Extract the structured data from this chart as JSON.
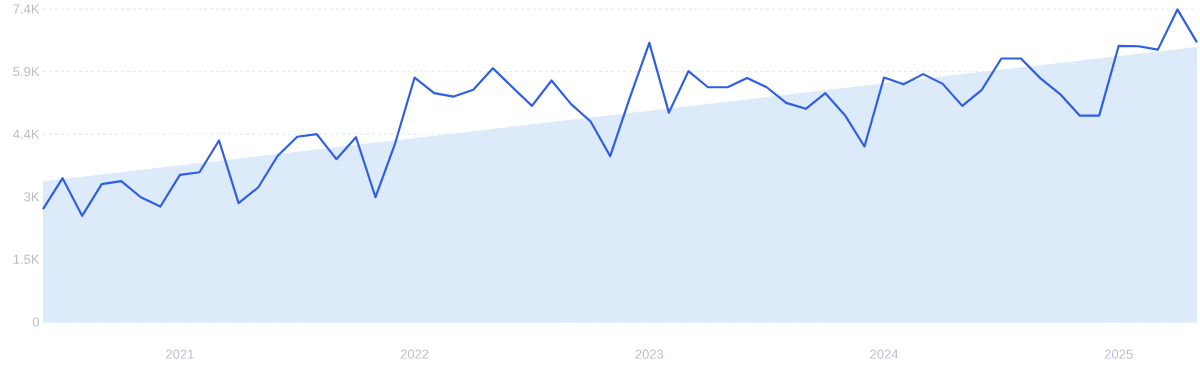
{
  "chart_data": {
    "type": "line",
    "x": [
      "2020-06",
      "2020-07",
      "2020-08",
      "2020-09",
      "2020-10",
      "2020-11",
      "2020-12",
      "2021-01",
      "2021-02",
      "2021-03",
      "2021-04",
      "2021-05",
      "2021-06",
      "2021-07",
      "2021-08",
      "2021-09",
      "2021-10",
      "2021-11",
      "2021-12",
      "2022-01",
      "2022-02",
      "2022-03",
      "2022-04",
      "2022-05",
      "2022-06",
      "2022-07",
      "2022-08",
      "2022-09",
      "2022-10",
      "2022-11",
      "2022-12",
      "2023-01",
      "2023-02",
      "2023-03",
      "2023-04",
      "2023-05",
      "2023-06",
      "2023-07",
      "2023-08",
      "2023-09",
      "2023-10",
      "2023-11",
      "2023-12",
      "2024-01",
      "2024-02",
      "2024-03",
      "2024-04",
      "2024-05",
      "2024-06",
      "2024-07",
      "2024-08",
      "2024-09",
      "2024-10",
      "2024-11",
      "2024-12",
      "2025-01",
      "2025-02",
      "2025-03",
      "2025-04",
      "2025-05"
    ],
    "series": [
      {
        "type": "area",
        "x": [
          "2020-06",
          "2025-05"
        ],
        "values": [
          3330,
          6500
        ],
        "color": "#dceafa"
      },
      {
        "color": "#2f5fe3",
        "values": [
          2670,
          3400,
          2510,
          3260,
          3330,
          2950,
          2730,
          3480,
          3540,
          4290,
          2810,
          3180,
          3930,
          4380,
          4440,
          3850,
          4370,
          2950,
          4220,
          5780,
          5410,
          5330,
          5490,
          6000,
          5550,
          5110,
          5710,
          5150,
          4740,
          3920,
          5300,
          6600,
          4950,
          5930,
          5550,
          5550,
          5770,
          5550,
          5180,
          5040,
          5410,
          4890,
          4150,
          5780,
          5620,
          5860,
          5630,
          5110,
          5490,
          6230,
          6230,
          5760,
          5390,
          4880,
          4880,
          6530,
          6520,
          6440,
          7390,
          6610
        ]
      }
    ],
    "xlim": [
      "2020-06",
      "2025-05"
    ],
    "xticks": [
      {
        "value": "2021-01",
        "label": "2021"
      },
      {
        "value": "2022-01",
        "label": "2022"
      },
      {
        "value": "2023-01",
        "label": "2023"
      },
      {
        "value": "2024-01",
        "label": "2024"
      },
      {
        "value": "2025-01",
        "label": "2025"
      }
    ],
    "ylim": [
      0,
      7400
    ],
    "yticks": [
      0,
      {
        "value": 1480,
        "label": "1.5K"
      },
      {
        "value": 2960,
        "label": "3K"
      },
      {
        "value": 4440,
        "label": "4.4K"
      },
      {
        "value": 5920,
        "label": "5.9K"
      },
      {
        "value": 7400,
        "label": "7.4K"
      }
    ],
    "grid": "y",
    "marker": "none",
    "line_style": "solid"
  }
}
